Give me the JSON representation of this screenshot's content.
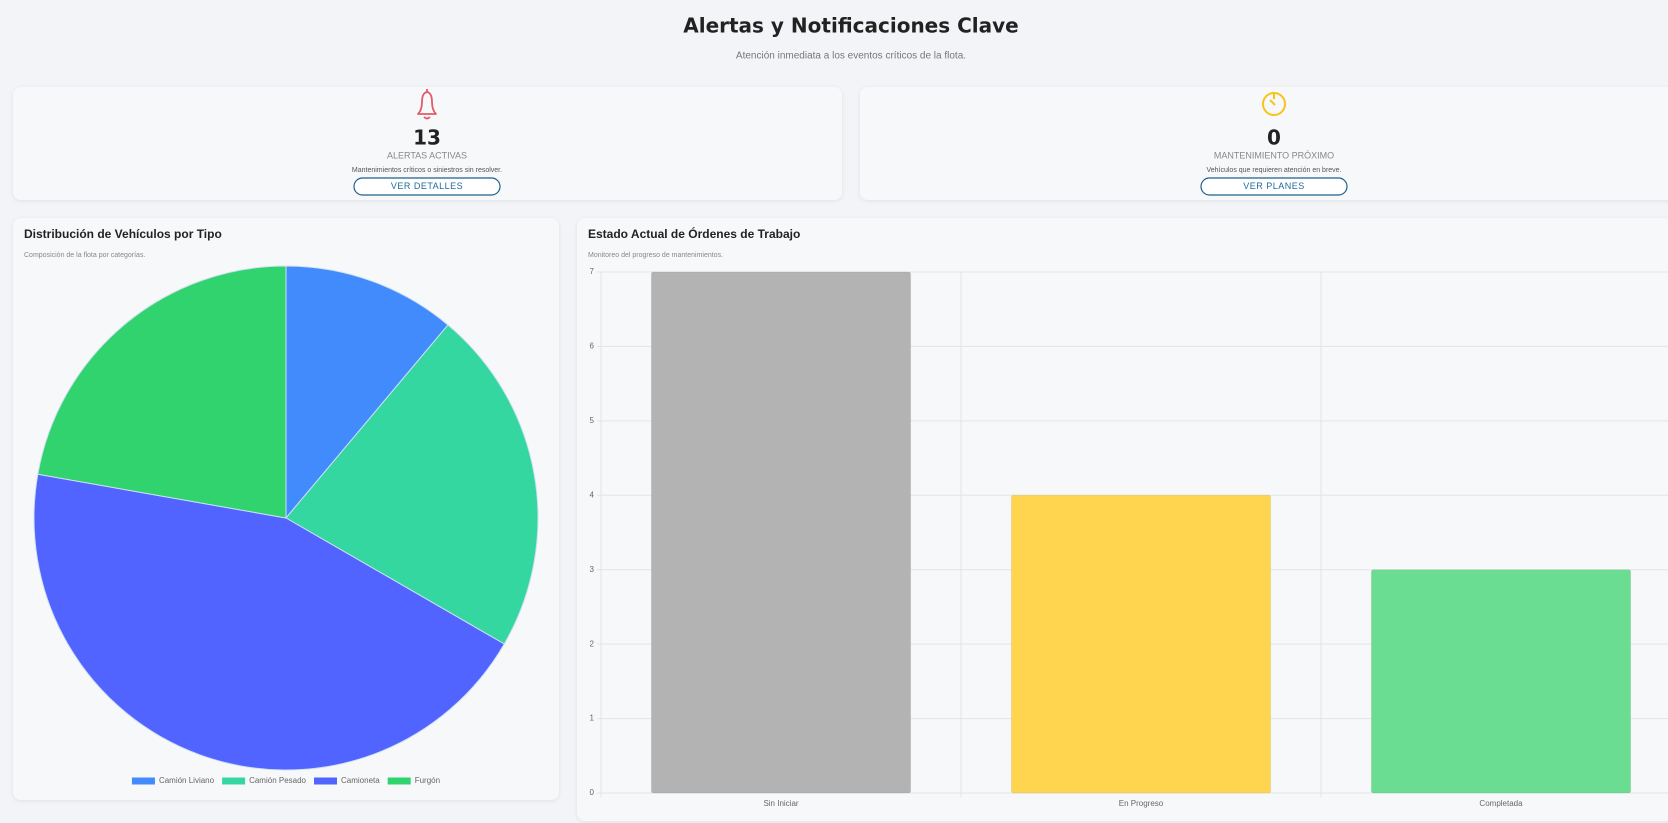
{
  "header": {
    "title": "Alertas y Notificaciones Clave",
    "subtitle": "Atención inmediata a los eventos críticos de la flota."
  },
  "cards": [
    {
      "value": 13,
      "label": "ALERTAS ACTIVAS",
      "description": "Mantenimientos críticos o siniestros sin resolver.",
      "button": "VER DETALLES"
    },
    {
      "value": 0,
      "label": "MANTENIMIENTO PRÓXIMO",
      "description": "Vehículos que requieren atención en breve.",
      "button": "VER PLANES"
    }
  ],
  "chart_data": [
    {
      "type": "pie",
      "title": "Distribución de Vehículos por Tipo",
      "subtitle": "Composición de la flota por categorías.",
      "categories": [
        "Camión Liviano",
        "Camión Pesado",
        "Camioneta",
        "Furgón"
      ],
      "values": [
        1,
        2,
        4,
        2
      ],
      "colors": [
        "#428bfd",
        "#35d7a1",
        "#5264ff",
        "#30d36d"
      ],
      "legend": "bottom"
    },
    {
      "type": "bar",
      "title": "Estado Actual de Órdenes de Trabajo",
      "subtitle": "Monitoreo del progreso de mantenimientos.",
      "categories": [
        "Sin Iniciar",
        "En Progreso",
        "Completada"
      ],
      "values": [
        7,
        4,
        3
      ],
      "colors": [
        "#b3b3b3",
        "#ffd54f",
        "#6bdd92"
      ],
      "ylim": [
        0,
        7
      ],
      "yticks": [
        0,
        1,
        2,
        3,
        4,
        5,
        6,
        7
      ],
      "grid": true
    }
  ]
}
